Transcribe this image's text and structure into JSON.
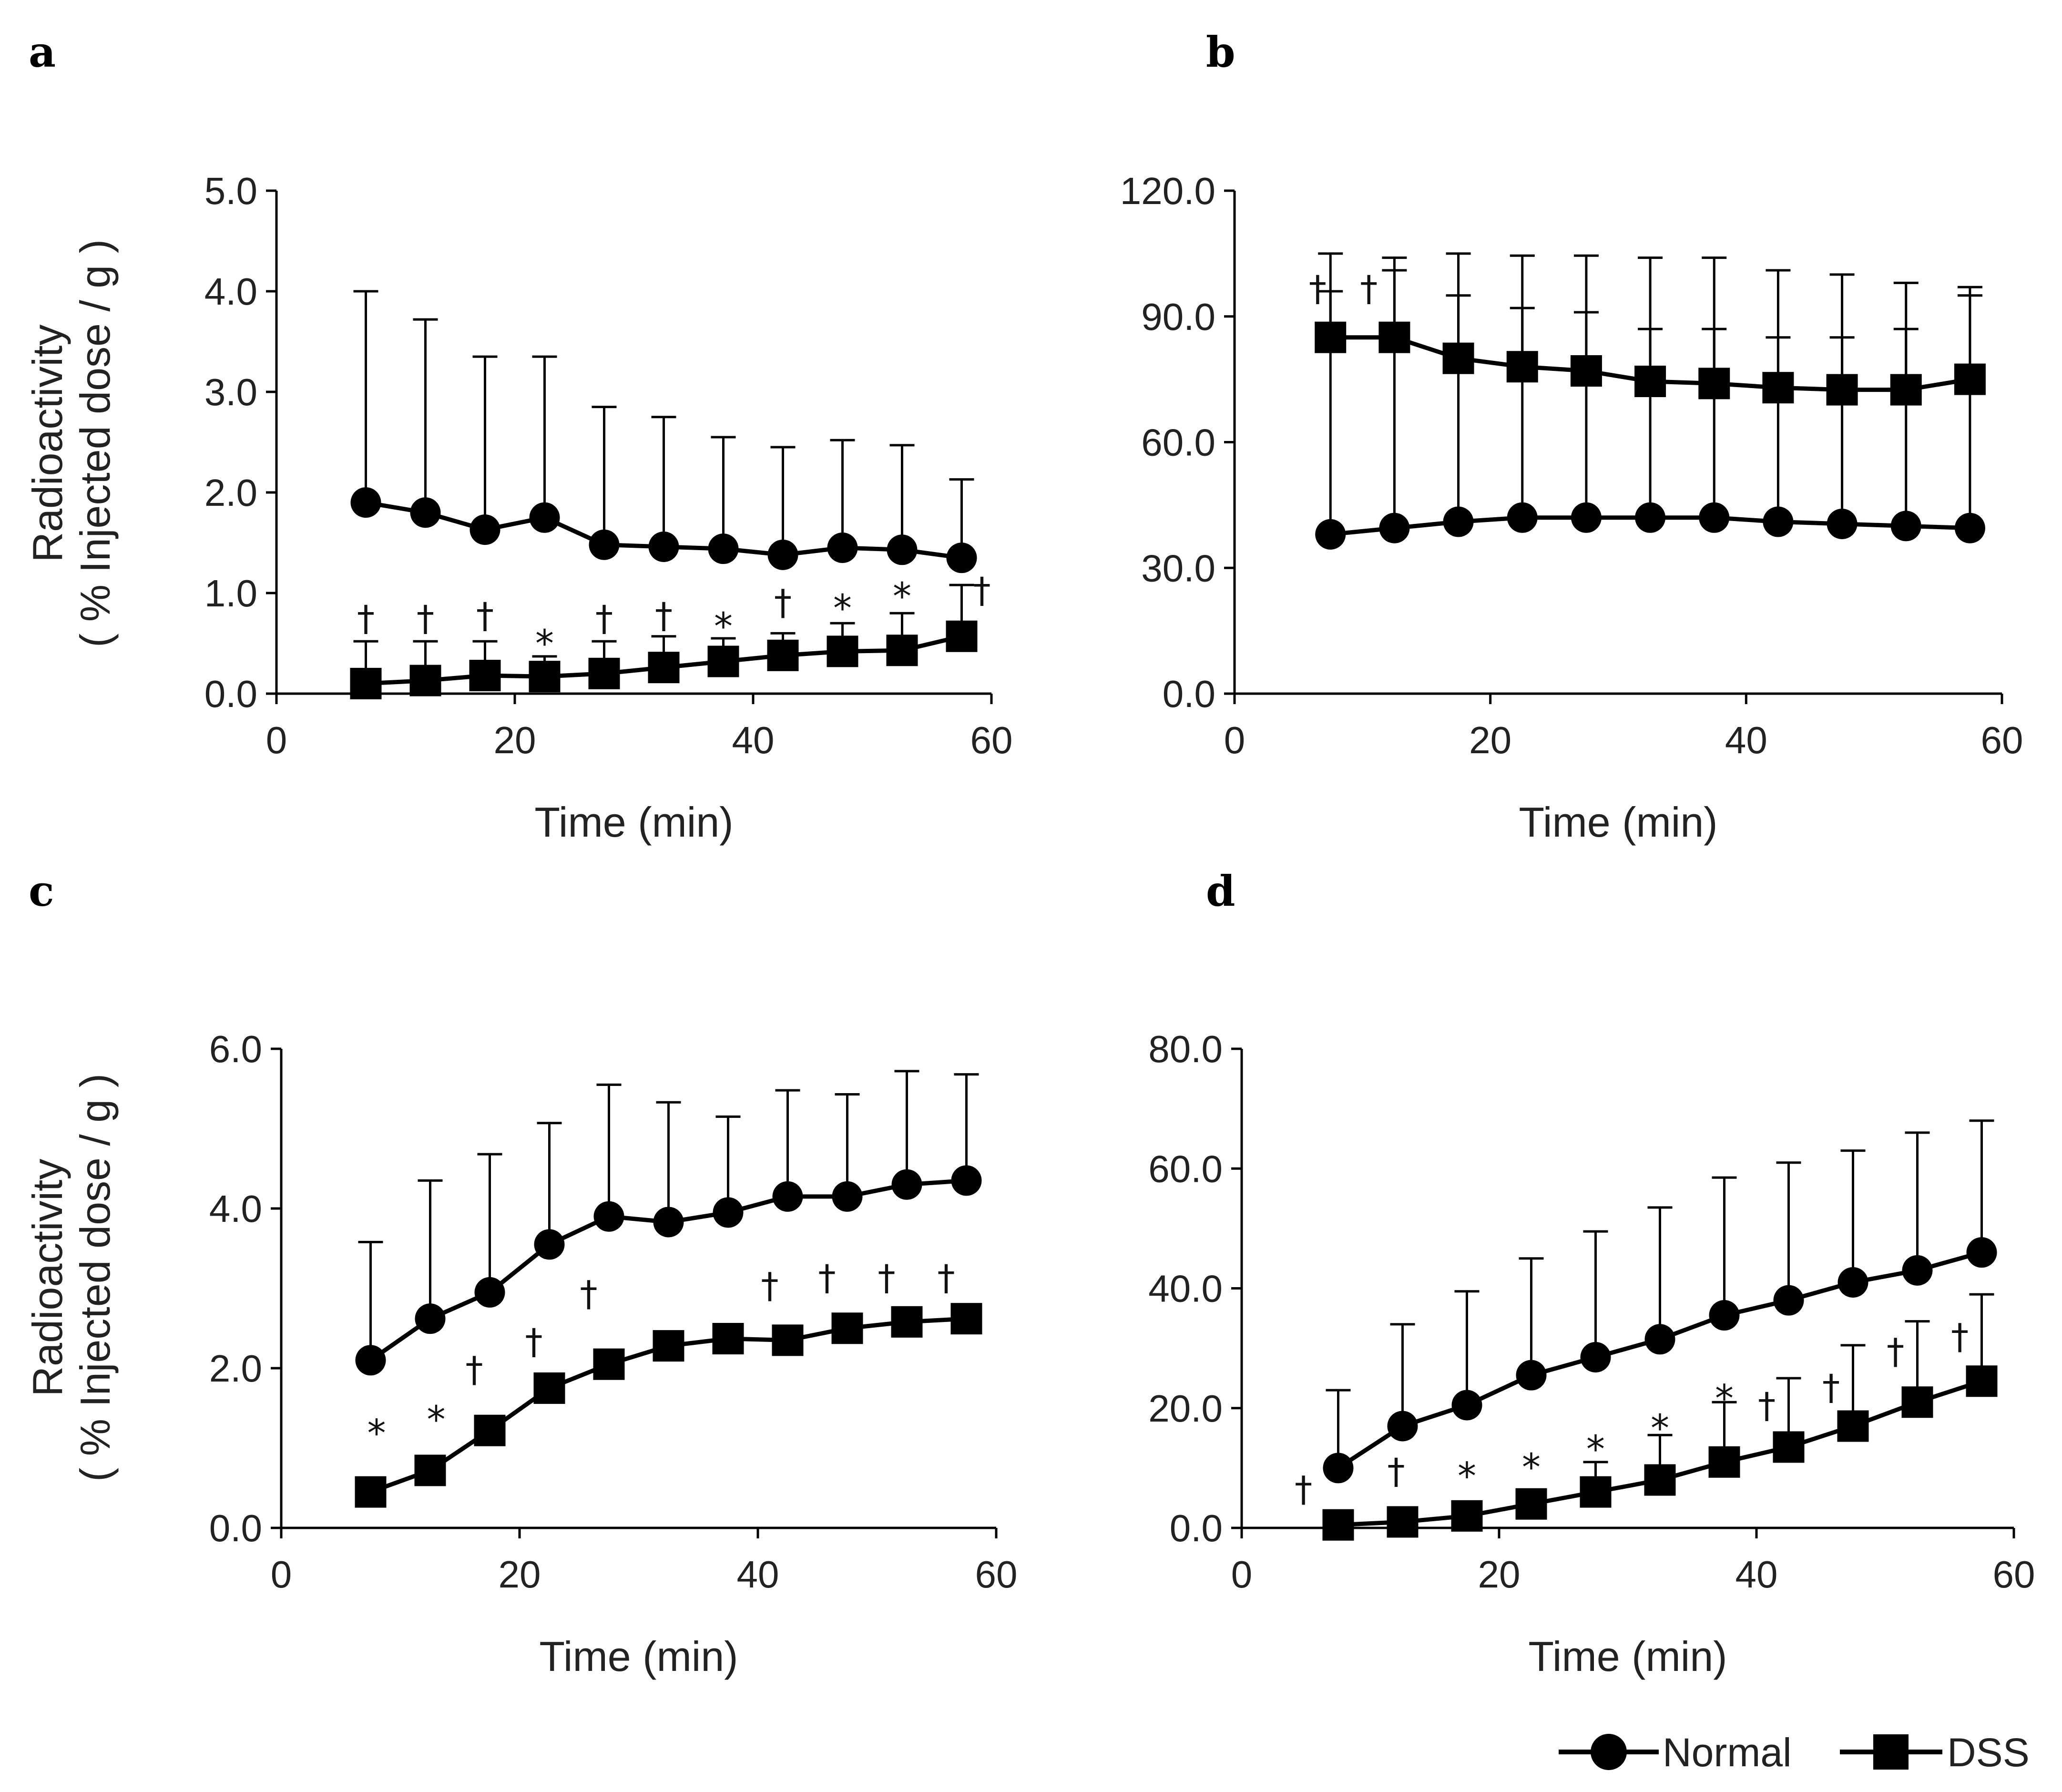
{
  "figure": {
    "panel_labels": [
      "a",
      "b",
      "c",
      "d"
    ],
    "y_axis_title_line1": "Radioactivity",
    "y_axis_title_line2": "( % Injected dose / g )",
    "legend": [
      {
        "label": "Normal",
        "marker": "circle"
      },
      {
        "label": "DSS",
        "marker": "square"
      }
    ]
  },
  "chart_data": [
    {
      "type": "line",
      "panel": "a",
      "xlabel": "Time (min)",
      "ylabel": "Radioactivity ( % Injected dose / g )",
      "xlim": [
        0,
        60
      ],
      "ylim": [
        0,
        5
      ],
      "xticks": [
        0,
        20,
        40,
        60
      ],
      "yticks": [
        0,
        1,
        2,
        3,
        4,
        5
      ],
      "ytick_labels": [
        "0.0",
        "1.0",
        "2.0",
        "3.0",
        "4.0",
        "5.0"
      ],
      "x": [
        7.5,
        12.5,
        17.5,
        22.5,
        27.5,
        32.5,
        37.5,
        42.5,
        47.5,
        52.5,
        57.5
      ],
      "series": [
        {
          "name": "Normal",
          "marker": "circle",
          "values": [
            1.9,
            1.8,
            1.63,
            1.75,
            1.48,
            1.46,
            1.44,
            1.38,
            1.45,
            1.43,
            1.35
          ],
          "error_upper": [
            4.0,
            3.72,
            3.35,
            3.35,
            2.85,
            2.75,
            2.55,
            2.45,
            2.52,
            2.47,
            2.13
          ]
        },
        {
          "name": "DSS",
          "marker": "square",
          "values": [
            0.1,
            0.13,
            0.18,
            0.17,
            0.2,
            0.26,
            0.32,
            0.38,
            0.42,
            0.43,
            0.57
          ],
          "error_upper": [
            0.52,
            0.52,
            0.52,
            0.37,
            0.52,
            0.57,
            0.55,
            0.6,
            0.7,
            0.8,
            1.08
          ]
        }
      ],
      "annotations": [
        {
          "x": 7.5,
          "y": 0.72,
          "text": "†"
        },
        {
          "x": 12.5,
          "y": 0.72,
          "text": "†"
        },
        {
          "x": 17.5,
          "y": 0.75,
          "text": "†"
        },
        {
          "x": 22.5,
          "y": 0.55,
          "text": "*"
        },
        {
          "x": 27.5,
          "y": 0.72,
          "text": "†"
        },
        {
          "x": 32.5,
          "y": 0.75,
          "text": "†"
        },
        {
          "x": 37.5,
          "y": 0.72,
          "text": "*"
        },
        {
          "x": 42.5,
          "y": 0.88,
          "text": "†"
        },
        {
          "x": 47.5,
          "y": 0.9,
          "text": "*"
        },
        {
          "x": 52.5,
          "y": 1.02,
          "text": "*"
        },
        {
          "x": 59.2,
          "y": 1.0,
          "text": "†"
        }
      ]
    },
    {
      "type": "line",
      "panel": "b",
      "xlabel": "Time (min)",
      "ylabel": "",
      "xlim": [
        0,
        60
      ],
      "ylim": [
        0,
        120
      ],
      "xticks": [
        0,
        20,
        40,
        60
      ],
      "yticks": [
        0,
        30,
        60,
        90,
        120
      ],
      "ytick_labels": [
        "0.0",
        "30.0",
        "60.0",
        "90.0",
        "120.0"
      ],
      "x": [
        7.5,
        12.5,
        17.5,
        22.5,
        27.5,
        32.5,
        37.5,
        42.5,
        47.5,
        52.5,
        57.5
      ],
      "series": [
        {
          "name": "Normal",
          "marker": "circle",
          "values": [
            38.0,
            39.5,
            41.0,
            42.0,
            42.0,
            42.0,
            42.0,
            41.0,
            40.5,
            40.0,
            39.5
          ],
          "error_upper": [
            105.0,
            104.0,
            105.0,
            104.5,
            104.5,
            104.0,
            104.0,
            101.0,
            100.0,
            98.0,
            95.0
          ]
        },
        {
          "name": "DSS",
          "marker": "square",
          "values": [
            85.0,
            85.0,
            80.0,
            78.0,
            77.0,
            74.5,
            74.0,
            73.0,
            72.5,
            72.5,
            75.0
          ],
          "error_upper": [
            96.0,
            101.0,
            95.0,
            92.0,
            91.0,
            87.0,
            87.0,
            85.0,
            85.0,
            87.0,
            97.0
          ]
        }
      ],
      "annotations": [
        {
          "x": 6.5,
          "y": 96.0,
          "text": "†"
        },
        {
          "x": 10.5,
          "y": 96.0,
          "text": "†"
        }
      ]
    },
    {
      "type": "line",
      "panel": "c",
      "xlabel": "Time (min)",
      "ylabel": "Radioactivity ( % Injected dose / g )",
      "xlim": [
        0,
        60
      ],
      "ylim": [
        0,
        6
      ],
      "xticks": [
        0,
        20,
        40,
        60
      ],
      "yticks": [
        0,
        2,
        4,
        6
      ],
      "ytick_labels": [
        "0.0",
        "2.0",
        "4.0",
        "6.0"
      ],
      "x": [
        7.5,
        12.5,
        17.5,
        22.5,
        27.5,
        32.5,
        37.5,
        42.5,
        47.5,
        52.5,
        57.5
      ],
      "series": [
        {
          "name": "Normal",
          "marker": "circle",
          "values": [
            2.1,
            2.62,
            2.95,
            3.55,
            3.9,
            3.83,
            3.95,
            4.15,
            4.15,
            4.3,
            4.35
          ],
          "error_upper": [
            3.58,
            4.35,
            4.68,
            5.07,
            5.55,
            5.33,
            5.15,
            5.48,
            5.43,
            5.72,
            5.68
          ]
        },
        {
          "name": "DSS",
          "marker": "square",
          "values": [
            0.45,
            0.72,
            1.22,
            1.75,
            2.05,
            2.28,
            2.37,
            2.35,
            2.5,
            2.58,
            2.62
          ]
        }
      ],
      "annotations": [
        {
          "x": 8.0,
          "y": 1.25,
          "text": "*"
        },
        {
          "x": 13.0,
          "y": 1.42,
          "text": "*"
        },
        {
          "x": 16.2,
          "y": 1.95,
          "text": "†"
        },
        {
          "x": 21.2,
          "y": 2.3,
          "text": "†"
        },
        {
          "x": 25.8,
          "y": 2.9,
          "text": "†"
        },
        {
          "x": 41.0,
          "y": 3.0,
          "text": "†"
        },
        {
          "x": 45.8,
          "y": 3.1,
          "text": "†"
        },
        {
          "x": 50.8,
          "y": 3.1,
          "text": "†"
        },
        {
          "x": 55.8,
          "y": 3.1,
          "text": "†"
        }
      ]
    },
    {
      "type": "line",
      "panel": "d",
      "xlabel": "Time (min)",
      "ylabel": "",
      "xlim": [
        0,
        60
      ],
      "ylim": [
        0,
        80
      ],
      "xticks": [
        0,
        20,
        40,
        60
      ],
      "yticks": [
        0,
        20,
        40,
        60,
        80
      ],
      "ytick_labels": [
        "0.0",
        "20.0",
        "40.0",
        "60.0",
        "80.0"
      ],
      "x": [
        7.5,
        12.5,
        17.5,
        22.5,
        27.5,
        32.5,
        37.5,
        42.5,
        47.5,
        52.5,
        57.5
      ],
      "series": [
        {
          "name": "Normal",
          "marker": "circle",
          "values": [
            10.0,
            17.0,
            20.5,
            25.5,
            28.5,
            31.5,
            35.5,
            38.0,
            41.0,
            43.0,
            46.0
          ],
          "error_upper": [
            23.0,
            34.0,
            39.5,
            45.0,
            49.5,
            53.5,
            58.5,
            61.0,
            63.0,
            66.0,
            68.0
          ]
        },
        {
          "name": "DSS",
          "marker": "square",
          "values": [
            0.5,
            1.0,
            2.0,
            4.0,
            6.0,
            8.0,
            11.0,
            13.5,
            17.0,
            21.0,
            24.5
          ],
          "error_upper": [
            1.0,
            1.5,
            3.0,
            6.0,
            11.0,
            15.5,
            21.0,
            25.0,
            30.5,
            34.5,
            39.0
          ]
        }
      ],
      "annotations": [
        {
          "x": 4.8,
          "y": 6.0,
          "text": "†"
        },
        {
          "x": 12.0,
          "y": 9.0,
          "text": "†"
        },
        {
          "x": 17.5,
          "y": 9.5,
          "text": "*"
        },
        {
          "x": 22.5,
          "y": 11.0,
          "text": "*"
        },
        {
          "x": 27.5,
          "y": 14.0,
          "text": "*"
        },
        {
          "x": 32.5,
          "y": 17.5,
          "text": "*"
        },
        {
          "x": 37.5,
          "y": 22.5,
          "text": "*"
        },
        {
          "x": 40.8,
          "y": 20.0,
          "text": "†"
        },
        {
          "x": 45.8,
          "y": 23.0,
          "text": "†"
        },
        {
          "x": 50.8,
          "y": 29.0,
          "text": "†"
        },
        {
          "x": 55.8,
          "y": 31.5,
          "text": "†"
        }
      ]
    }
  ]
}
